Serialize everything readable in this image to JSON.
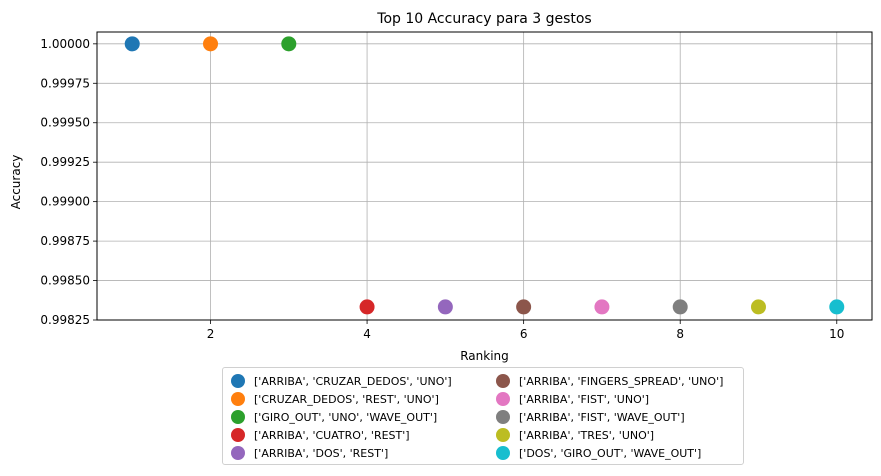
{
  "chart_data": {
    "type": "scatter",
    "title": "Top 10 Accuracy para 3 gestos",
    "xlabel": "Ranking",
    "ylabel": "Accuracy",
    "xlim": [
      0.55,
      10.45
    ],
    "ylim": [
      0.99825,
      1.000075
    ],
    "xticks": [
      2,
      4,
      6,
      8,
      10
    ],
    "yticks": [
      0.99825,
      0.9985,
      0.99875,
      0.999,
      0.99925,
      0.9995,
      0.99975,
      1.0
    ],
    "ytick_labels": [
      "0.99825",
      "0.99850",
      "0.99875",
      "0.99900",
      "0.99925",
      "0.99950",
      "0.99975",
      "1.00000"
    ],
    "grid": true,
    "legend_placement": "below",
    "series": [
      {
        "name": "['ARRIBA', 'CRUZAR_DEDOS', 'UNO']",
        "x": 1,
        "y": 1.0,
        "color": "#1f77b4"
      },
      {
        "name": "['CRUZAR_DEDOS', 'REST', 'UNO']",
        "x": 2,
        "y": 1.0,
        "color": "#ff7f0e"
      },
      {
        "name": "['GIRO_OUT', 'UNO', 'WAVE_OUT']",
        "x": 3,
        "y": 1.0,
        "color": "#2ca02c"
      },
      {
        "name": "['ARRIBA', 'CUATRO', 'REST']",
        "x": 4,
        "y": 0.998333,
        "color": "#d62728"
      },
      {
        "name": "['ARRIBA', 'DOS', 'REST']",
        "x": 5,
        "y": 0.998333,
        "color": "#9467bd"
      },
      {
        "name": "['ARRIBA', 'FINGERS_SPREAD', 'UNO']",
        "x": 6,
        "y": 0.998333,
        "color": "#8c564b"
      },
      {
        "name": "['ARRIBA', 'FIST', 'UNO']",
        "x": 7,
        "y": 0.998333,
        "color": "#e377c2"
      },
      {
        "name": "['ARRIBA', 'FIST', 'WAVE_OUT']",
        "x": 8,
        "y": 0.998333,
        "color": "#7f7f7f"
      },
      {
        "name": "['ARRIBA', 'TRES', 'UNO']",
        "x": 9,
        "y": 0.998333,
        "color": "#bcbd22"
      },
      {
        "name": "['DOS', 'GIRO_OUT', 'WAVE_OUT']",
        "x": 10,
        "y": 0.998333,
        "color": "#17becf"
      }
    ]
  }
}
